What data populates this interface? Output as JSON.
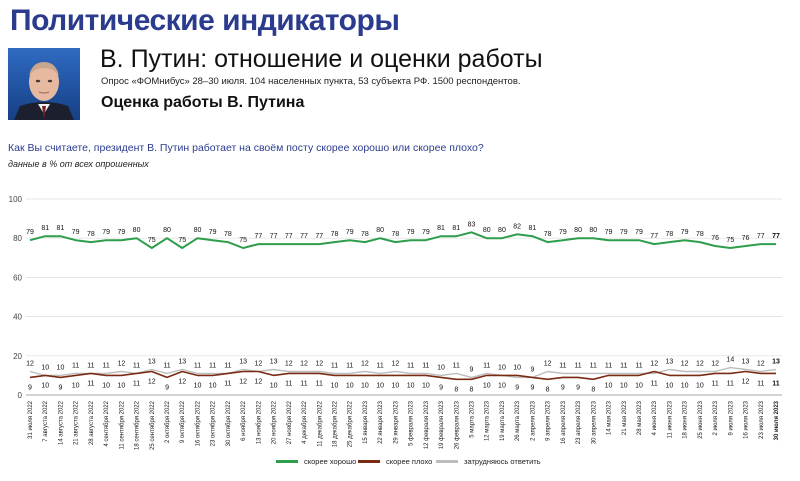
{
  "header": {
    "title": "Политические индикаторы",
    "subtitle": "В. Путин: отношение и оценки работы",
    "survey": "Опрос «ФОМнибус» 28–30 июля. 104 населенных пункта, 53 субъекта РФ. 1500 респондентов.",
    "section": "Оценка работы В. Путина",
    "question": "Как Вы считаете, президент В. Путин работает на своём посту скорее хорошо или скорее плохо?",
    "note": "данные в % от всех опрошенных"
  },
  "colors": {
    "title": "#2b3c8e",
    "good": "#2e9e4c",
    "bad": "#7b2a14",
    "hard": "#bdbdbd",
    "grid": "#dcdcdc"
  },
  "chart_data": {
    "type": "line",
    "ylim": [
      0,
      100
    ],
    "yticks": [
      0,
      20,
      40,
      60,
      80,
      100
    ],
    "grid": true,
    "legend_position": "bottom",
    "x": [
      "31 июля 2022",
      "7 августа 2022",
      "14 августа 2022",
      "21 августа 2022",
      "28 августа 2022",
      "4 сентября 2022",
      "11 сентября 2022",
      "18 сентября 2022",
      "25 сентября 2022",
      "2 октября 2022",
      "9 октября 2022",
      "16 октября 2022",
      "23 октября 2022",
      "30 октября 2022",
      "6 ноября 2022",
      "13 ноября 2022",
      "20 ноября 2022",
      "27 ноября 2022",
      "4 декабря 2022",
      "11 декабря 2022",
      "18 декабря 2022",
      "25 декабря 2022",
      "15 января 2023",
      "22 января 2023",
      "29 января 2023",
      "5 февраля 2023",
      "12 февраля 2023",
      "19 февраля 2023",
      "26 февраля 2023",
      "5 марта 2023",
      "12 марта 2023",
      "19 марта 2023",
      "26 марта 2023",
      "2 апреля 2023",
      "9 апреля 2023",
      "16 апреля 2023",
      "23 апреля 2023",
      "30 апреля 2023",
      "14 мая 2023",
      "21 мая 2023",
      "28 мая 2023",
      "4 июня 2023",
      "11 июня 2023",
      "18 июня 2023",
      "25 июня 2023",
      "2 июля 2023",
      "9 июля 2023",
      "16 июля 2023",
      "23 июля 2023",
      "30 июля 2023"
    ],
    "series": [
      {
        "name": "скорее хорошо",
        "values": [
          79,
          81,
          81,
          79,
          78,
          79,
          79,
          80,
          75,
          80,
          75,
          80,
          79,
          78,
          75,
          77,
          77,
          77,
          77,
          77,
          78,
          79,
          78,
          80,
          78,
          79,
          79,
          81,
          81,
          83,
          80,
          80,
          82,
          81,
          78,
          79,
          80,
          80,
          79,
          79,
          79,
          77,
          78,
          79,
          78,
          76,
          75,
          76,
          77,
          77
        ]
      },
      {
        "name": "скорее плохо",
        "values": [
          9,
          10,
          9,
          10,
          11,
          10,
          10,
          11,
          12,
          9,
          12,
          10,
          10,
          11,
          12,
          12,
          10,
          11,
          11,
          11,
          10,
          10,
          10,
          10,
          10,
          10,
          10,
          9,
          8,
          8,
          10,
          10,
          10,
          9,
          8,
          9,
          9,
          8,
          10,
          10,
          10,
          12,
          10,
          10,
          10,
          11,
          11,
          12,
          11,
          11
        ]
      },
      {
        "name": "затрудняюсь ответить",
        "values": [
          12,
          10,
          10,
          11,
          11,
          11,
          12,
          11,
          13,
          11,
          13,
          11,
          11,
          11,
          13,
          12,
          13,
          12,
          12,
          12,
          11,
          11,
          12,
          11,
          12,
          11,
          11,
          10,
          11,
          9,
          11,
          10,
          9,
          9,
          12,
          11,
          11,
          11,
          11,
          11,
          11,
          11,
          13,
          12,
          12,
          12,
          14,
          13,
          12,
          13
        ]
      }
    ]
  }
}
